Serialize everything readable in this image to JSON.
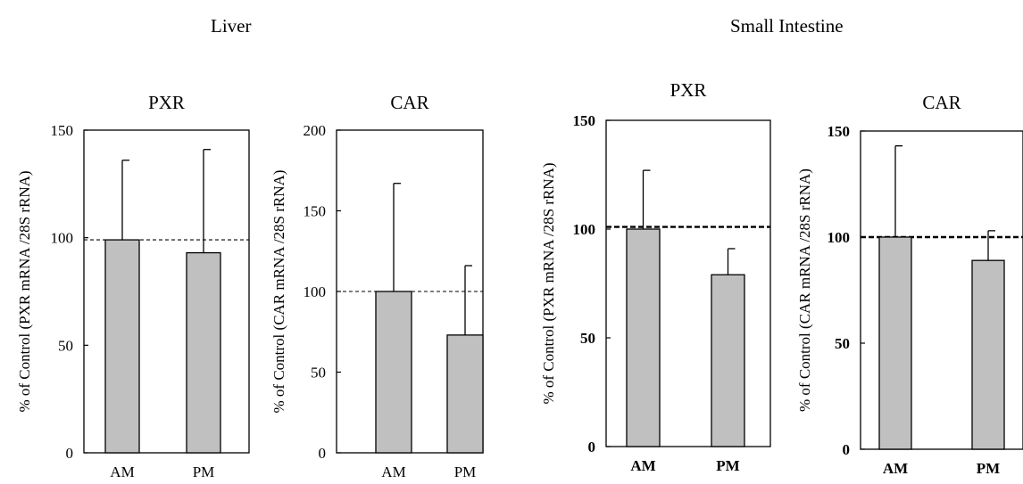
{
  "groups": [
    {
      "title": "Liver"
    },
    {
      "title": "Small Intestine"
    }
  ],
  "colors": {
    "bar_fill": "#c0c0c0",
    "axis": "#000000"
  },
  "chart_data": [
    {
      "type": "bar",
      "group": "Liver",
      "title": "PXR",
      "ylabel": "% of Control (PXR mRNA /28S rRNA)",
      "xlabel": "",
      "categories": [
        "AM",
        "PM"
      ],
      "values": [
        99,
        93
      ],
      "error_plus": [
        37,
        48
      ],
      "ylim": [
        0,
        150
      ],
      "yticks": [
        0,
        50,
        100,
        150
      ],
      "reference_line": 99,
      "grid": false
    },
    {
      "type": "bar",
      "group": "Liver",
      "title": "CAR",
      "ylabel": "% of Control (CAR mRNA /28S rRNA)",
      "xlabel": "",
      "categories": [
        "AM",
        "PM"
      ],
      "values": [
        100,
        73
      ],
      "error_plus": [
        67,
        43
      ],
      "ylim": [
        0,
        200
      ],
      "yticks": [
        0,
        50,
        100,
        150,
        200
      ],
      "reference_line": 100,
      "grid": false
    },
    {
      "type": "bar",
      "group": "Small Intestine",
      "title": "PXR",
      "ylabel": "% of Control (PXR mRNA /28S rRNA)",
      "xlabel": "",
      "categories": [
        "AM",
        "PM"
      ],
      "values": [
        100,
        79
      ],
      "error_plus": [
        27,
        12
      ],
      "ylim": [
        0,
        150
      ],
      "yticks": [
        0,
        50,
        100,
        150
      ],
      "reference_line": 101,
      "grid": false
    },
    {
      "type": "bar",
      "group": "Small Intestine",
      "title": "CAR",
      "ylabel": "% of Control (CAR mRNA /28S rRNA)",
      "xlabel": "",
      "categories": [
        "AM",
        "PM"
      ],
      "values": [
        100,
        89
      ],
      "error_plus": [
        43,
        14
      ],
      "ylim": [
        0,
        150
      ],
      "yticks": [
        0,
        50,
        100,
        150
      ],
      "reference_line": 100,
      "grid": false
    }
  ]
}
